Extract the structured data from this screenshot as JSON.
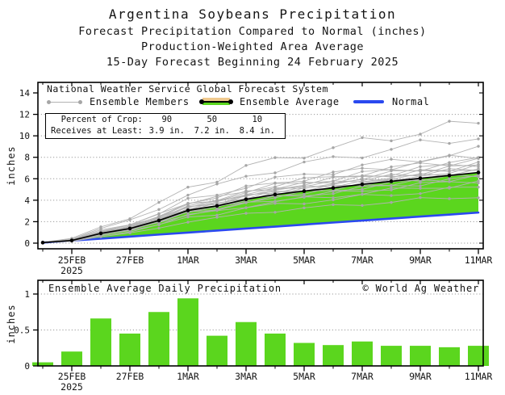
{
  "title": {
    "line1": "Argentina Soybeans Precipitation",
    "line2": "Forecast Precipitation Compared to Normal (inches)",
    "line3": "Production-Weighted Area Average",
    "line4": "15-Day Forecast Beginning 24 February 2025"
  },
  "main_chart": {
    "legend_title": "National Weather Service Global Forecast System",
    "legend": [
      {
        "label": "Ensemble Members",
        "symbol": "gray-line-with-dots"
      },
      {
        "label": "Ensemble Average",
        "symbol": "black-line-with-tan-green-band"
      },
      {
        "label": "Normal",
        "symbol": "blue-line"
      }
    ],
    "info_box": {
      "row1_label": "Percent of Crop:",
      "row1_values": [
        "90",
        "50",
        "10"
      ],
      "row2_label": "Receives at Least:",
      "row2_values": [
        "3.9 in.",
        "7.2 in.",
        "8.4 in."
      ]
    },
    "ylabel": "inches"
  },
  "bottom_chart": {
    "title": "Ensemble Average Daily Precipitation",
    "credit": "© World Ag Weather",
    "ylabel": "inches"
  },
  "colors": {
    "green": "#5bd61e",
    "blue": "#2a49ef",
    "gray_member_line": "#b3b3b3",
    "gray_member_dot": "#a6a6a6",
    "tan": "#f0c98e",
    "grid": "#9a9a9a",
    "black": "#000000"
  },
  "chart_data": [
    {
      "type": "line",
      "title": "Forecast cumulative precipitation compared to normal",
      "ylabel": "inches",
      "ylim": [
        0,
        15
      ],
      "yticks": [
        0,
        2,
        4,
        6,
        8,
        10,
        12,
        14
      ],
      "grid": true,
      "legend_position": "top-inside",
      "x_categories": [
        "24FEB",
        "25FEB",
        "26FEB",
        "27FEB",
        "28FEB",
        "1MAR",
        "2MAR",
        "3MAR",
        "4MAR",
        "5MAR",
        "6MAR",
        "7MAR",
        "8MAR",
        "9MAR",
        "10MAR",
        "11MAR"
      ],
      "x_tick_labels": [
        {
          "day": 1,
          "label": "25FEB",
          "sublabel": "2025"
        },
        {
          "day": 3,
          "label": "27FEB"
        },
        {
          "day": 5,
          "label": "1MAR"
        },
        {
          "day": 7,
          "label": "3MAR"
        },
        {
          "day": 9,
          "label": "5MAR"
        },
        {
          "day": 11,
          "label": "7MAR"
        },
        {
          "day": 13,
          "label": "9MAR"
        },
        {
          "day": 15,
          "label": "11MAR"
        }
      ],
      "series": [
        {
          "name": "Ensemble Average",
          "values": [
            0.05,
            0.25,
            0.91,
            1.36,
            2.11,
            3.05,
            3.47,
            4.08,
            4.53,
            4.85,
            5.14,
            5.48,
            5.76,
            6.04,
            6.3,
            6.58
          ]
        },
        {
          "name": "Normal",
          "values": [
            0.05,
            0.24,
            0.42,
            0.61,
            0.8,
            0.98,
            1.17,
            1.36,
            1.54,
            1.73,
            1.92,
            2.1,
            2.29,
            2.48,
            2.66,
            2.85
          ]
        },
        {
          "name": "Ensemble Members",
          "count": 21,
          "final_values": [
            11.3,
            10.0,
            8.6,
            8.2,
            7.9,
            7.7,
            7.5,
            7.35,
            7.2,
            7.1,
            7.0,
            6.9,
            6.75,
            6.6,
            6.45,
            6.3,
            6.1,
            5.9,
            5.6,
            5.2,
            4.4
          ],
          "note": "gray member traces fan out from ~0 on 24FEB to 4.4-11.3 in on 11MAR"
        }
      ],
      "fill_between": {
        "upper": "Ensemble Average",
        "lower": "Normal",
        "color_key": "green"
      }
    },
    {
      "type": "bar",
      "title": "Ensemble Average Daily Precipitation",
      "ylabel": "inches",
      "ylim": [
        0,
        1.19
      ],
      "yticks": [
        0,
        0.5,
        1
      ],
      "ytick_labels": [
        "0",
        "0.5",
        "1"
      ],
      "grid": true,
      "categories": [
        "24FEB",
        "25FEB",
        "26FEB",
        "27FEB",
        "28FEB",
        "1MAR",
        "2MAR",
        "3MAR",
        "4MAR",
        "5MAR",
        "6MAR",
        "7MAR",
        "8MAR",
        "9MAR",
        "10MAR",
        "11MAR"
      ],
      "values": [
        0.05,
        0.2,
        0.66,
        0.45,
        0.75,
        0.94,
        0.42,
        0.61,
        0.45,
        0.32,
        0.29,
        0.34,
        0.28,
        0.28,
        0.26,
        0.28
      ],
      "x_tick_labels": [
        {
          "day": 1,
          "label": "25FEB",
          "sublabel": "2025"
        },
        {
          "day": 3,
          "label": "27FEB"
        },
        {
          "day": 5,
          "label": "1MAR"
        },
        {
          "day": 7,
          "label": "3MAR"
        },
        {
          "day": 9,
          "label": "5MAR"
        },
        {
          "day": 11,
          "label": "7MAR"
        },
        {
          "day": 13,
          "label": "9MAR"
        },
        {
          "day": 15,
          "label": "11MAR"
        }
      ]
    }
  ]
}
